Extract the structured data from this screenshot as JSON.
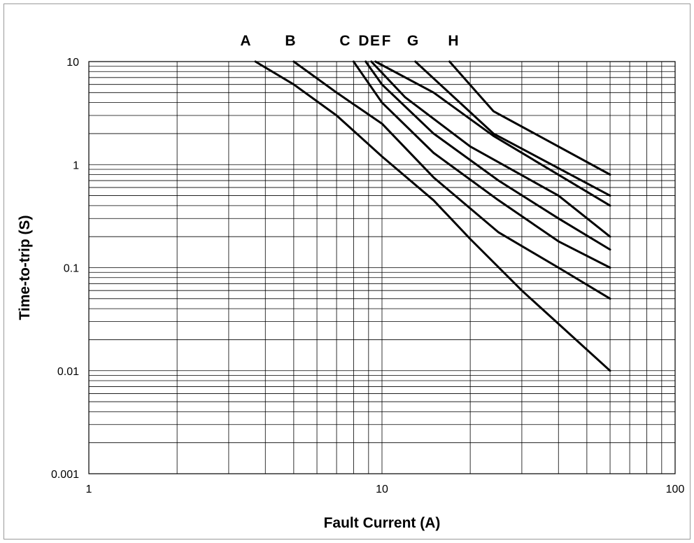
{
  "chart_data": {
    "type": "line",
    "xlabel": "Fault Current (A)",
    "ylabel": "Time-to-trip (S)",
    "xscale": "log",
    "yscale": "log",
    "xlim": [
      1,
      100
    ],
    "ylim": [
      0.001,
      10
    ],
    "grid": true,
    "x_tick_labels": [
      "1",
      "10",
      "100"
    ],
    "y_tick_labels": [
      "0.001",
      "0.01",
      "0.1",
      "1",
      "10"
    ],
    "curve_labels": [
      "A",
      "B",
      "C",
      "D",
      "E",
      "F",
      "G",
      "H"
    ],
    "series": [
      {
        "name": "A",
        "points": [
          [
            3.7,
            10
          ],
          [
            5,
            6
          ],
          [
            7,
            3
          ],
          [
            10,
            1.2
          ],
          [
            15,
            0.45
          ],
          [
            20,
            0.19
          ],
          [
            30,
            0.06
          ],
          [
            60,
            0.01
          ]
        ]
      },
      {
        "name": "B",
        "points": [
          [
            5,
            10
          ],
          [
            7,
            5
          ],
          [
            10,
            2.5
          ],
          [
            15,
            0.75
          ],
          [
            25,
            0.22
          ],
          [
            40,
            0.1
          ],
          [
            60,
            0.05
          ]
        ]
      },
      {
        "name": "C",
        "points": [
          [
            8,
            10
          ],
          [
            10,
            4
          ],
          [
            15,
            1.3
          ],
          [
            25,
            0.45
          ],
          [
            40,
            0.18
          ],
          [
            60,
            0.1
          ]
        ]
      },
      {
        "name": "D",
        "points": [
          [
            8.8,
            10
          ],
          [
            10,
            6
          ],
          [
            15,
            2
          ],
          [
            25,
            0.7
          ],
          [
            40,
            0.3
          ],
          [
            60,
            0.15
          ]
        ]
      },
      {
        "name": "E",
        "points": [
          [
            9.2,
            10
          ],
          [
            12,
            4.5
          ],
          [
            20,
            1.5
          ],
          [
            40,
            0.5
          ],
          [
            60,
            0.2
          ]
        ]
      },
      {
        "name": "F",
        "points": [
          [
            9.5,
            10
          ],
          [
            15,
            5
          ],
          [
            24,
            1.9
          ],
          [
            60,
            0.4
          ]
        ]
      },
      {
        "name": "G",
        "points": [
          [
            13,
            10
          ],
          [
            24,
            2
          ],
          [
            60,
            0.5
          ]
        ]
      },
      {
        "name": "H",
        "points": [
          [
            17,
            10
          ],
          [
            24,
            3.3
          ],
          [
            60,
            0.8
          ]
        ]
      }
    ]
  }
}
